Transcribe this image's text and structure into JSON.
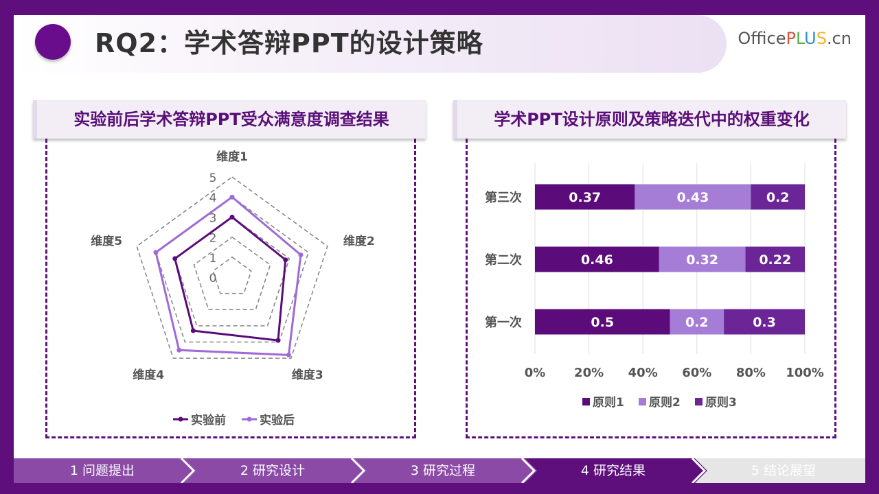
{
  "header": {
    "title": "RQ2：学术答辩PPT的设计策略",
    "brand": {
      "office": "Office",
      "p": "P",
      "l": "L",
      "u": "U",
      "s": "S",
      "suffix": ".cn"
    }
  },
  "left_panel": {
    "title": "实验前后学术答辩PPT受众满意度调查结果"
  },
  "right_panel": {
    "title": "学术PPT设计原则及策略迭代中的权重变化"
  },
  "chart_data": [
    {
      "type": "radar",
      "axes": [
        "维度1",
        "维度2",
        "维度3",
        "维度4",
        "维度5"
      ],
      "scale_ticks": [
        "0",
        "1",
        "2",
        "3",
        "4",
        "5"
      ],
      "range": [
        0,
        5
      ],
      "grid": "dashed",
      "legend_position": "bottom",
      "series": [
        {
          "name": "实验前",
          "color": "#5c0b7a",
          "values": [
            3,
            2.8,
            3.9,
            3.3,
            3
          ]
        },
        {
          "name": "实验后",
          "color": "#a06ad6",
          "values": [
            4,
            3.6,
            4.8,
            4.5,
            4
          ]
        }
      ]
    },
    {
      "type": "bar",
      "orientation": "horizontal",
      "stacked": "percent",
      "categories": [
        "第三次",
        "第二次",
        "第一次"
      ],
      "x_ticks": [
        "0%",
        "20%",
        "40%",
        "60%",
        "80%",
        "100%"
      ],
      "xlim": [
        0,
        1
      ],
      "grid": true,
      "legend_position": "bottom",
      "series": [
        {
          "name": "原则1",
          "color": "#5c0b7a",
          "values": [
            0.37,
            0.46,
            0.5
          ]
        },
        {
          "name": "原则2",
          "color": "#a57cd6",
          "values": [
            0.43,
            0.32,
            0.2
          ]
        },
        {
          "name": "原则3",
          "color": "#6b2596",
          "values": [
            0.2,
            0.22,
            0.3
          ]
        }
      ]
    }
  ],
  "nav": {
    "items": [
      {
        "label": "1 问题提出",
        "state": "done"
      },
      {
        "label": "2 研究设计",
        "state": "done"
      },
      {
        "label": "3 研究过程",
        "state": "done"
      },
      {
        "label": "4 研究结果",
        "state": "active"
      },
      {
        "label": "5  结论展望",
        "state": "pending"
      }
    ],
    "colors": {
      "done": "#8a4aa6",
      "active": "#5e0f7c",
      "pending": "#e6e6e6",
      "arrow": "#ffffff"
    }
  }
}
